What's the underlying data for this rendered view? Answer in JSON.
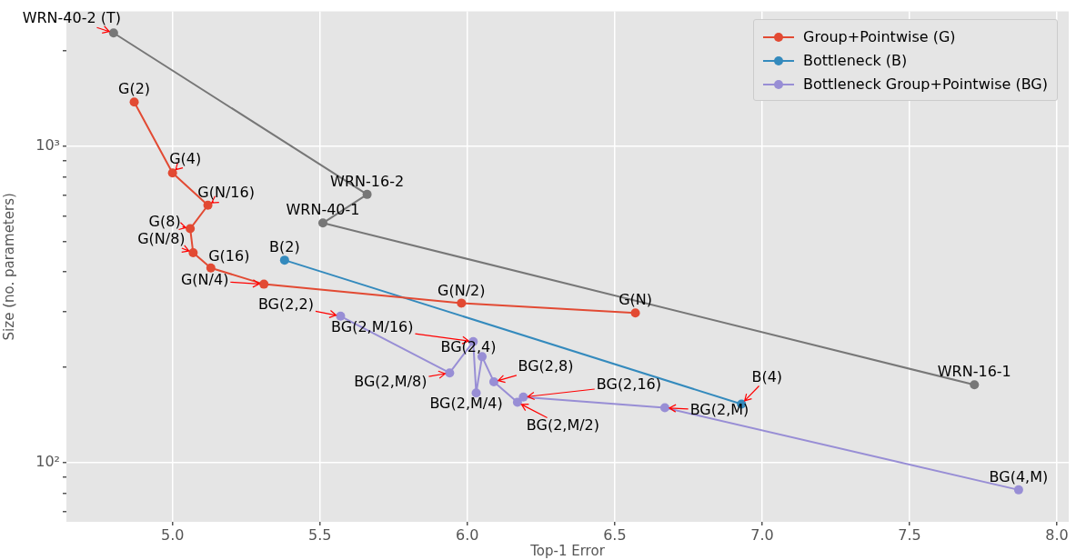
{
  "chart_data": {
    "type": "line",
    "xlabel": "Top-1 Error",
    "ylabel": "Size (no. parameters)",
    "log": "y",
    "grid": true,
    "legend": "top right",
    "marker": "circle",
    "line_style": "solid",
    "xlim": [
      4.64,
      8.04
    ],
    "ylim": [
      65,
      2660
    ],
    "xticks": [
      {
        "value": 5,
        "label": "5.0"
      },
      {
        "value": 5.5,
        "label": "5.5"
      },
      {
        "value": 6,
        "label": "6.0"
      },
      {
        "value": 6.5,
        "label": "6.5"
      },
      {
        "value": 7,
        "label": "7.0"
      },
      {
        "value": 7.5,
        "label": "7.5"
      },
      {
        "value": 8,
        "label": "8.0"
      }
    ],
    "yticks": [
      {
        "value": 70,
        "label": null
      },
      {
        "value": 80,
        "label": null
      },
      {
        "value": 90,
        "label": null
      },
      {
        "value": 100,
        "label": "10²"
      },
      {
        "value": 200,
        "label": null
      },
      {
        "value": 300,
        "label": null
      },
      {
        "value": 400,
        "label": null
      },
      {
        "value": 500,
        "label": null
      },
      {
        "value": 600,
        "label": null
      },
      {
        "value": 700,
        "label": null
      },
      {
        "value": 800,
        "label": null
      },
      {
        "value": 900,
        "label": null
      },
      {
        "value": 1000,
        "label": "10³"
      },
      {
        "value": 2000,
        "label": null
      }
    ],
    "series": [
      {
        "color": "#777777",
        "x": [
          4.8,
          5.66,
          5.51,
          7.72
        ],
        "values": [
          2275,
          703,
          571,
          176
        ]
      },
      {
        "name": "Group+Pointwise (G)",
        "color": "#e24a33",
        "x": [
          4.87,
          5.0,
          5.12,
          5.06,
          5.07,
          5.13,
          5.31,
          5.98,
          6.57
        ],
        "values": [
          1377,
          822,
          650,
          548,
          460,
          412,
          366,
          319,
          297
        ]
      },
      {
        "name": "Bottleneck (B)",
        "color": "#348abd",
        "x": [
          5.38,
          6.93
        ],
        "values": [
          436,
          153
        ]
      },
      {
        "name": "Bottleneck Group+Pointwise (BG)",
        "color": "#988ed5",
        "x": [
          5.57,
          5.94,
          6.02,
          6.03,
          6.05,
          6.09,
          6.17,
          6.19,
          6.67,
          7.87
        ],
        "values": [
          290,
          192,
          241,
          166,
          216,
          180,
          155,
          161,
          149,
          82
        ]
      }
    ],
    "annotations": [
      {
        "text": "WRN-40-2 (T)",
        "x": 4.8,
        "y": 2275
      },
      {
        "text": "WRN-16-2",
        "x": 5.66,
        "y": 703
      },
      {
        "text": "WRN-40-1",
        "x": 5.51,
        "y": 571
      },
      {
        "text": "WRN-16-1",
        "x": 7.72,
        "y": 176
      },
      {
        "text": "G(2)",
        "x": 4.87,
        "y": 1377
      },
      {
        "text": "G(4)",
        "x": 5.0,
        "y": 822
      },
      {
        "text": "G(N/16)",
        "x": 5.12,
        "y": 650
      },
      {
        "text": "G(8)",
        "x": 5.06,
        "y": 548
      },
      {
        "text": "G(N/8)",
        "x": 5.07,
        "y": 460
      },
      {
        "text": "G(16)",
        "x": 5.13,
        "y": 412
      },
      {
        "text": "G(N/4)",
        "x": 5.31,
        "y": 366
      },
      {
        "text": "G(N/2)",
        "x": 5.98,
        "y": 319
      },
      {
        "text": "G(N)",
        "x": 6.57,
        "y": 297
      },
      {
        "text": "B(2)",
        "x": 5.38,
        "y": 436
      },
      {
        "text": "B(4)",
        "x": 6.93,
        "y": 153
      },
      {
        "text": "BG(2,2)",
        "x": 5.57,
        "y": 290
      },
      {
        "text": "BG(2,M/8)",
        "x": 5.94,
        "y": 192
      },
      {
        "text": "BG(2,M/16)",
        "x": 6.02,
        "y": 241
      },
      {
        "text": "BG(2,M/4)",
        "x": 6.03,
        "y": 166
      },
      {
        "text": "BG(2,4)",
        "x": 6.05,
        "y": 216
      },
      {
        "text": "BG(2,8)",
        "x": 6.09,
        "y": 180
      },
      {
        "text": "BG(2,M/2)",
        "x": 6.17,
        "y": 155
      },
      {
        "text": "BG(2,16)",
        "x": 6.19,
        "y": 161
      },
      {
        "text": "BG(2,M)",
        "x": 6.67,
        "y": 149
      },
      {
        "text": "BG(4,M)",
        "x": 7.87,
        "y": 82
      }
    ]
  }
}
